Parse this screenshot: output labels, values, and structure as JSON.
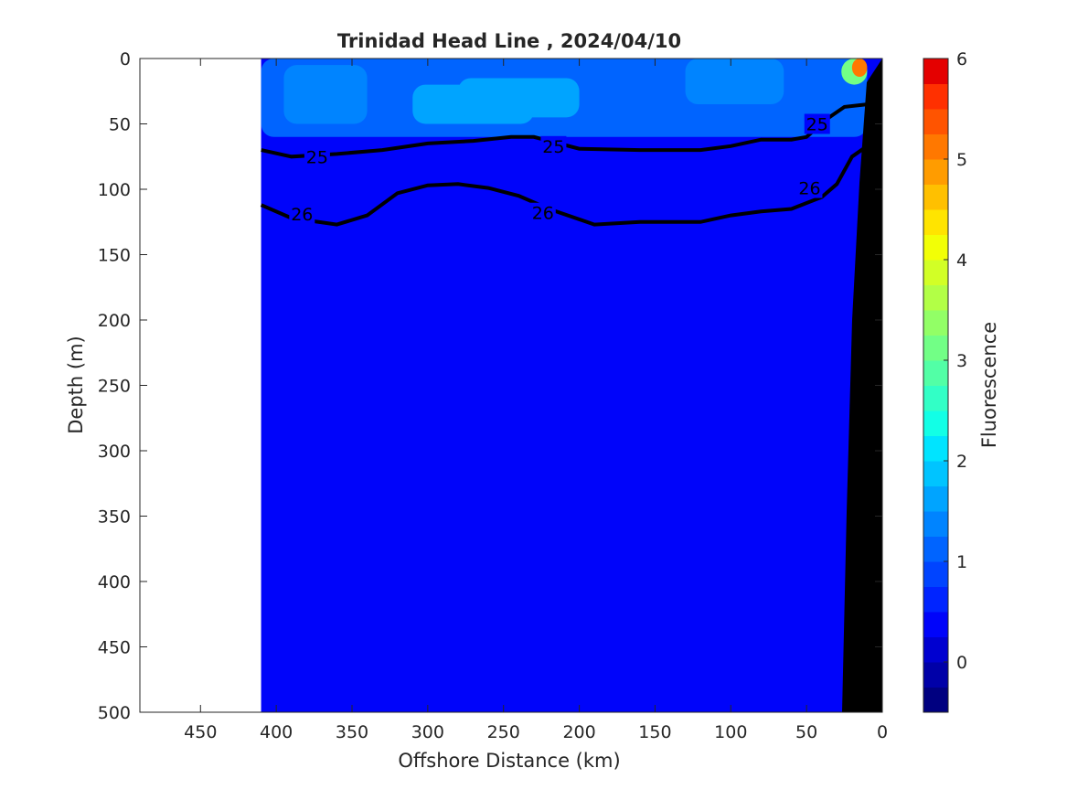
{
  "chart_data": {
    "type": "contour",
    "title": "Trinidad Head Line , 2024/04/10",
    "xlabel": "Offshore Distance (km)",
    "ylabel": "Depth (m)",
    "xlim": [
      490,
      0
    ],
    "ylim": [
      500,
      0
    ],
    "x_reversed": true,
    "y_reversed": true,
    "x_ticks": [
      450,
      400,
      350,
      300,
      250,
      200,
      150,
      100,
      50,
      0
    ],
    "y_ticks": [
      0,
      50,
      100,
      150,
      200,
      250,
      300,
      350,
      400,
      450,
      500
    ],
    "data_extent_km": [
      410,
      0
    ],
    "background_fluorescence": 0.25,
    "fluorescence_patches": [
      {
        "x_km": [
          410,
          10
        ],
        "depth_m": [
          0,
          60
        ],
        "value": 1.1
      },
      {
        "x_km": [
          395,
          340
        ],
        "depth_m": [
          5,
          50
        ],
        "value": 1.3
      },
      {
        "x_km": [
          310,
          230
        ],
        "depth_m": [
          20,
          50
        ],
        "value": 1.6
      },
      {
        "x_km": [
          280,
          200
        ],
        "depth_m": [
          15,
          45
        ],
        "value": 1.5
      },
      {
        "x_km": [
          130,
          65
        ],
        "depth_m": [
          0,
          35
        ],
        "value": 1.3
      },
      {
        "x_km": [
          27,
          10
        ],
        "depth_m": [
          0,
          20
        ],
        "value": 3.2
      },
      {
        "x_km": [
          20,
          10
        ],
        "depth_m": [
          0,
          14
        ],
        "value": 5.2
      }
    ],
    "isopycnals": [
      {
        "label": "25",
        "bold": true,
        "label_positions": [
          [
            373,
            75
          ],
          [
            217,
            67
          ],
          [
            43,
            50
          ]
        ],
        "points": [
          [
            410,
            70
          ],
          [
            390,
            75
          ],
          [
            360,
            73
          ],
          [
            330,
            70
          ],
          [
            300,
            65
          ],
          [
            270,
            63
          ],
          [
            245,
            60
          ],
          [
            230,
            60
          ],
          [
            200,
            69
          ],
          [
            160,
            70
          ],
          [
            120,
            70
          ],
          [
            100,
            67
          ],
          [
            80,
            62
          ],
          [
            60,
            62
          ],
          [
            50,
            60
          ],
          [
            35,
            45
          ],
          [
            25,
            37
          ],
          [
            10,
            35
          ]
        ]
      },
      {
        "label": "26",
        "bold": true,
        "label_positions": [
          [
            383,
            119
          ],
          [
            224,
            118
          ],
          [
            48,
            99
          ]
        ],
        "points": [
          [
            410,
            112
          ],
          [
            390,
            122
          ],
          [
            360,
            127
          ],
          [
            340,
            120
          ],
          [
            320,
            103
          ],
          [
            300,
            97
          ],
          [
            280,
            96
          ],
          [
            260,
            99
          ],
          [
            240,
            105
          ],
          [
            220,
            115
          ],
          [
            190,
            127
          ],
          [
            160,
            125
          ],
          [
            120,
            125
          ],
          [
            100,
            120
          ],
          [
            80,
            117
          ],
          [
            60,
            115
          ],
          [
            40,
            106
          ],
          [
            30,
            96
          ],
          [
            20,
            75
          ],
          [
            10,
            67
          ]
        ]
      }
    ],
    "colorbar": {
      "label": "Fluorescence",
      "range": [
        -0.5,
        6
      ],
      "ticks": [
        0,
        1,
        2,
        3,
        4,
        5,
        6
      ],
      "levels": [
        -0.5,
        -0.25,
        0,
        0.25,
        0.5,
        0.75,
        1,
        1.25,
        1.5,
        1.75,
        2,
        2.25,
        2.5,
        2.75,
        3,
        3.25,
        3.5,
        3.75,
        4,
        4.25,
        4.5,
        4.75,
        5,
        5.25,
        5.5,
        5.75,
        6
      ],
      "colors": [
        "#000080",
        "#0000a8",
        "#0000d0",
        "#0004fa",
        "#0024ff",
        "#0044ff",
        "#0064ff",
        "#0084ff",
        "#00a4ff",
        "#00c4ff",
        "#00e4ff",
        "#12ffe6",
        "#32ffc6",
        "#52ffa6",
        "#72ff86",
        "#92ff66",
        "#b2ff46",
        "#d2ff26",
        "#f2ff06",
        "#ffe400",
        "#ffc000",
        "#ff9c00",
        "#ff7800",
        "#ff5400",
        "#ff3000",
        "#e40000"
      ]
    }
  }
}
